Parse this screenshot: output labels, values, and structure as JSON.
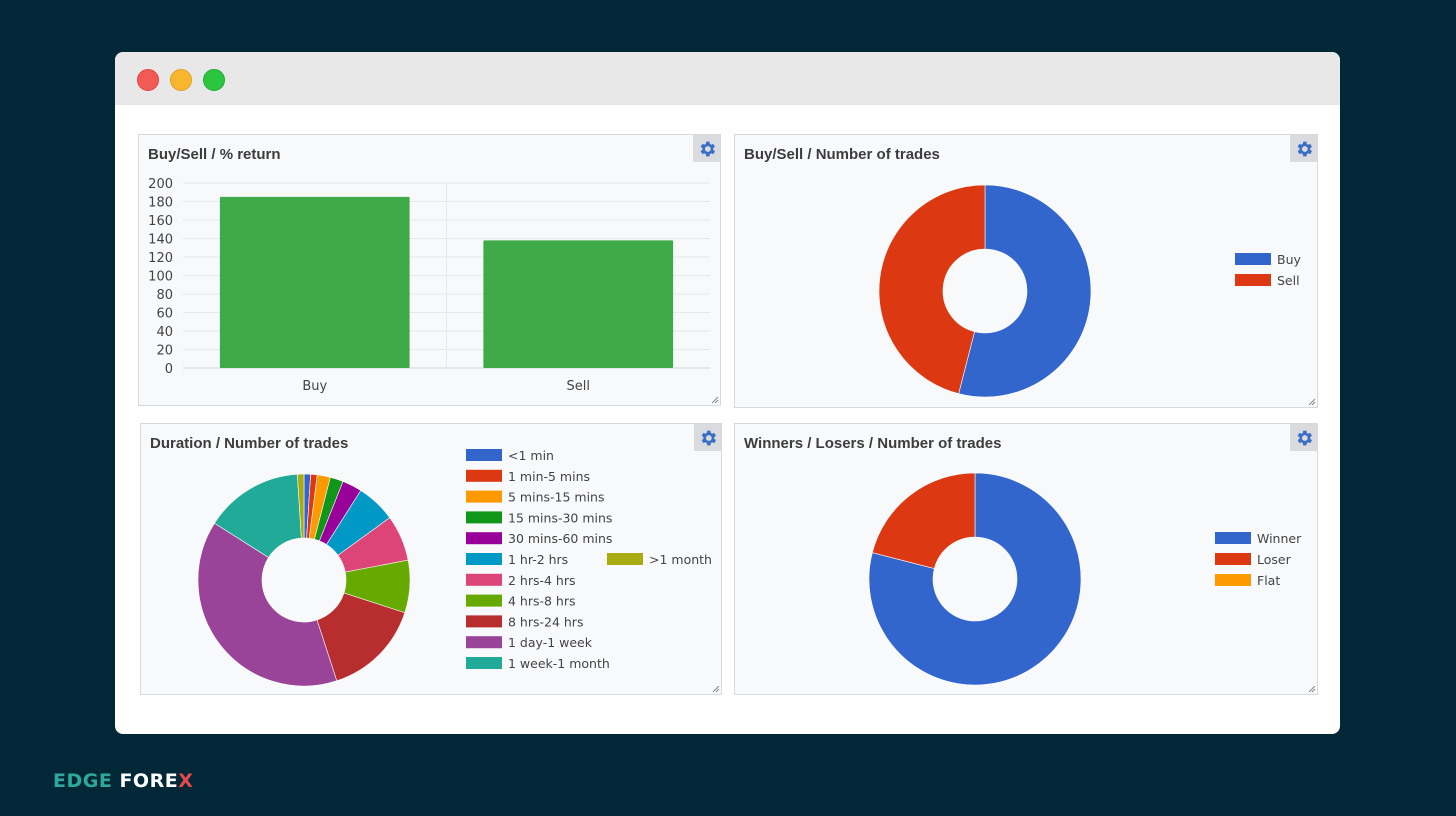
{
  "window": {
    "controls": [
      "close",
      "minimize",
      "maximize"
    ]
  },
  "brand": {
    "part1": "EDGE",
    "part2": "FORE",
    "mark": "X",
    "mark_color": "#e5484d"
  },
  "chart_data": [
    {
      "type": "bar",
      "title": "Buy/Sell / % return",
      "categories": [
        "Buy",
        "Sell"
      ],
      "values": [
        185,
        138
      ],
      "ylim": [
        0,
        200
      ],
      "yticks": [
        0,
        20,
        40,
        60,
        80,
        100,
        120,
        140,
        160,
        180,
        200
      ],
      "xlabel": "",
      "ylabel": "",
      "color": "#3eab48",
      "grid": true
    },
    {
      "type": "pie",
      "title": "Buy/Sell / Number of trades",
      "donut": true,
      "labels": [
        "Buy",
        "Sell"
      ],
      "values": [
        54,
        46
      ],
      "colors": [
        "#3366cc",
        "#dc3912"
      ],
      "legend_position": "right"
    },
    {
      "type": "pie",
      "title": "Duration / Number of trades",
      "donut": true,
      "labels": [
        "<1 min",
        "1 min-5 mins",
        "5 mins-15 mins",
        "15 mins-30 mins",
        "30 mins-60 mins",
        "1 hr-2 hrs",
        "2 hrs-4 hrs",
        "4 hrs-8 hrs",
        "8 hrs-24 hrs",
        "1 day-1 week",
        "1 week-1 month",
        ">1 month"
      ],
      "values": [
        1,
        1,
        2,
        2,
        3,
        6,
        7,
        8,
        15,
        39,
        15,
        1
      ],
      "colors": [
        "#3366cc",
        "#dc3912",
        "#ff9900",
        "#109618",
        "#990099",
        "#0099c6",
        "#dd4477",
        "#66aa00",
        "#b82e2e",
        "#994499",
        "#22aa99",
        "#aaaa11"
      ],
      "legend_position": "right"
    },
    {
      "type": "pie",
      "title": "Winners / Losers / Number of trades",
      "donut": true,
      "labels": [
        "Winner",
        "Loser",
        "Flat"
      ],
      "values": [
        79,
        21,
        0
      ],
      "colors": [
        "#3366cc",
        "#dc3912",
        "#ff9900"
      ],
      "legend_position": "right"
    }
  ]
}
